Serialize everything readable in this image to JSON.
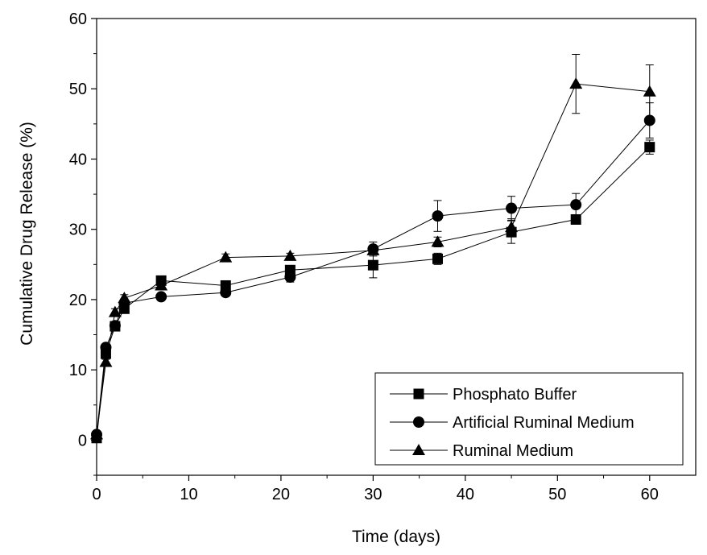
{
  "chart_data": {
    "type": "line",
    "xlabel": "Time (days)",
    "ylabel": "Cumulative Drug Release (%)",
    "xlim": [
      0,
      65
    ],
    "ylim": [
      -5,
      60
    ],
    "xticks": [
      0,
      10,
      20,
      30,
      40,
      50,
      60
    ],
    "yticks": [
      0,
      10,
      20,
      30,
      40,
      50,
      60
    ],
    "x_tick_labels": [
      "0",
      "10",
      "20",
      "30",
      "40",
      "50",
      "60"
    ],
    "y_tick_labels": [
      "0",
      "10",
      "20",
      "30",
      "40",
      "50",
      "60"
    ],
    "grid": false,
    "legend_position": "bottom-right",
    "series": [
      {
        "name": "Phosphato Buffer",
        "marker": "square",
        "x": [
          0,
          1,
          2,
          3,
          7,
          14,
          21,
          30,
          37,
          45,
          52,
          60
        ],
        "y": [
          0.3,
          12.3,
          16.2,
          18.7,
          22.7,
          22.0,
          24.2,
          24.9,
          25.8,
          29.6,
          31.4,
          41.7
        ],
        "err": [
          0,
          0.6,
          0.5,
          0.6,
          0.5,
          0.5,
          0.6,
          1.8,
          0.8,
          1.6,
          0.4,
          1.0
        ]
      },
      {
        "name": "Artificial Ruminal Medium",
        "marker": "circle",
        "x": [
          0,
          1,
          2,
          3,
          7,
          14,
          21,
          30,
          37,
          45,
          52,
          60
        ],
        "y": [
          0.8,
          13.2,
          16.3,
          19.5,
          20.4,
          21.0,
          23.2,
          27.2,
          31.9,
          33.0,
          33.5,
          45.5
        ],
        "err": [
          0,
          0.5,
          0.5,
          0.6,
          0.4,
          0.4,
          0.7,
          1.0,
          2.2,
          1.7,
          1.6,
          2.5
        ]
      },
      {
        "name": "Ruminal Medium",
        "marker": "triangle",
        "x": [
          0,
          1,
          2,
          3,
          7,
          14,
          21,
          30,
          37,
          45,
          52,
          60
        ],
        "y": [
          0.8,
          11.1,
          18.2,
          20.2,
          22.0,
          26.0,
          26.2,
          27.0,
          28.2,
          30.3,
          50.7,
          49.6
        ],
        "err": [
          0,
          0.4,
          0.5,
          0.5,
          0.5,
          0.5,
          0.4,
          0.6,
          0.7,
          1.2,
          4.2,
          3.8
        ]
      }
    ]
  }
}
